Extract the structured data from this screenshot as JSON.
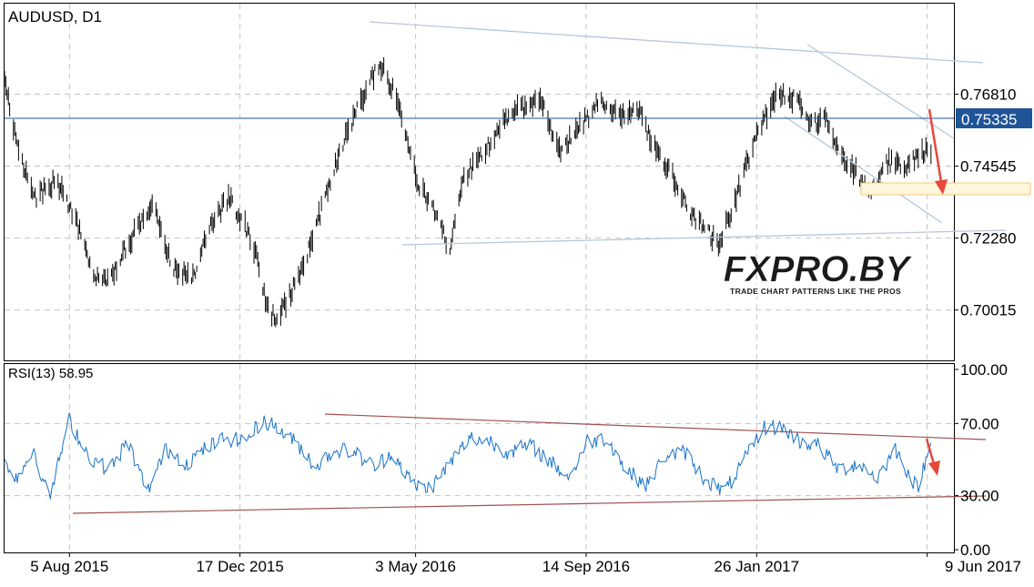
{
  "chart_data": [
    {
      "type": "line",
      "subtype": "bar-ohlc",
      "title": "AUDUSD, D1",
      "symbol": "AUDUSD",
      "timeframe": "D1",
      "current_price": 0.75335,
      "current_price_label": "0.75335",
      "y_ticks": [
        0.70015,
        0.7228,
        0.74545,
        0.7681
      ],
      "y_tick_labels": [
        "0.70015",
        "0.72280",
        "0.74545",
        "0.76810"
      ],
      "ylim": [
        0.6843,
        0.7966
      ],
      "grid": true,
      "x_tick_labels": [
        "5 Aug 2015",
        "17 Dec 2015",
        "3 May 2016",
        "14 Sep 2016",
        "26 Jan 2017",
        "9 Jun 2017"
      ],
      "x_tick_dates": [
        "2015-08-05",
        "2015-12-17",
        "2016-05-03",
        "2016-09-14",
        "2017-01-26",
        "2017-06-09"
      ],
      "x_range": [
        "2015-06-15",
        "2017-06-30"
      ],
      "series": [
        {
          "x": [
            "2015-06-15",
            "2015-06-25",
            "2015-07-08",
            "2015-07-25",
            "2015-08-10",
            "2015-08-25",
            "2015-09-05",
            "2015-09-20",
            "2015-10-10",
            "2015-10-25",
            "2015-11-10",
            "2015-11-25",
            "2015-12-08",
            "2015-12-20",
            "2015-12-30",
            "2016-01-08",
            "2016-01-15",
            "2016-01-25",
            "2016-02-05",
            "2016-02-20",
            "2016-03-05",
            "2016-03-20",
            "2016-04-05",
            "2016-04-20",
            "2016-05-05",
            "2016-05-15",
            "2016-05-30",
            "2016-06-10",
            "2016-06-25",
            "2016-07-10",
            "2016-07-25",
            "2016-08-10",
            "2016-08-25",
            "2016-09-10",
            "2016-09-25",
            "2016-10-10",
            "2016-10-25",
            "2016-11-05",
            "2016-11-20",
            "2016-12-05",
            "2016-12-20",
            "2016-12-28",
            "2017-01-10",
            "2017-01-25",
            "2017-02-10",
            "2017-02-25",
            "2017-03-10",
            "2017-03-20",
            "2017-04-01",
            "2017-04-15",
            "2017-04-25",
            "2017-05-08",
            "2017-05-20",
            "2017-06-05",
            "2017-06-12"
          ],
          "values": [
            0.773,
            0.752,
            0.735,
            0.741,
            0.729,
            0.71,
            0.709,
            0.721,
            0.735,
            0.713,
            0.71,
            0.728,
            0.735,
            0.728,
            0.717,
            0.7,
            0.697,
            0.705,
            0.714,
            0.733,
            0.751,
            0.765,
            0.778,
            0.765,
            0.74,
            0.733,
            0.719,
            0.742,
            0.749,
            0.76,
            0.764,
            0.765,
            0.75,
            0.758,
            0.766,
            0.761,
            0.763,
            0.753,
            0.743,
            0.731,
            0.724,
            0.721,
            0.736,
            0.754,
            0.768,
            0.767,
            0.758,
            0.761,
            0.749,
            0.743,
            0.736,
            0.747,
            0.745,
            0.75,
            0.751
          ]
        }
      ]
    },
    {
      "type": "line",
      "title": "RSI(13) 58.95",
      "indicator": "RSI(13)",
      "indicator_value": "58.95",
      "y_ticks": [
        0,
        30,
        70,
        100
      ],
      "y_tick_labels": [
        "0.00",
        "30.00",
        "70.00",
        "100.00"
      ],
      "ylim": [
        -1,
        103
      ],
      "grid": true,
      "x_range": [
        "2015-06-15",
        "2017-06-30"
      ],
      "series": [
        {
          "x": [
            "2015-06-15",
            "2015-06-25",
            "2015-07-08",
            "2015-07-20",
            "2015-08-05",
            "2015-08-20",
            "2015-09-05",
            "2015-09-20",
            "2015-10-05",
            "2015-10-20",
            "2015-11-05",
            "2015-11-20",
            "2015-12-05",
            "2015-12-20",
            "2016-01-05",
            "2016-01-18",
            "2016-02-01",
            "2016-02-15",
            "2016-03-01",
            "2016-03-15",
            "2016-04-01",
            "2016-04-15",
            "2016-05-01",
            "2016-05-15",
            "2016-06-01",
            "2016-06-15",
            "2016-07-01",
            "2016-07-15",
            "2016-08-01",
            "2016-08-15",
            "2016-09-01",
            "2016-09-15",
            "2016-10-01",
            "2016-10-15",
            "2016-11-01",
            "2016-11-15",
            "2016-12-01",
            "2016-12-15",
            "2017-01-01",
            "2017-01-15",
            "2017-02-01",
            "2017-02-15",
            "2017-03-01",
            "2017-03-15",
            "2017-04-01",
            "2017-04-15",
            "2017-05-01",
            "2017-05-15",
            "2017-06-01",
            "2017-06-12"
          ],
          "values": [
            48,
            40,
            56,
            28,
            72,
            52,
            44,
            60,
            32,
            56,
            48,
            56,
            62,
            60,
            72,
            66,
            58,
            46,
            56,
            54,
            46,
            54,
            36,
            34,
            50,
            62,
            60,
            54,
            58,
            50,
            40,
            60,
            62,
            44,
            36,
            52,
            54,
            40,
            32,
            48,
            68,
            68,
            60,
            58,
            44,
            48,
            40,
            56,
            34,
            58
          ]
        }
      ]
    }
  ],
  "watermark": {
    "brand": "FXPRO.BY",
    "tagline": "TRADE CHART PATTERNS LIKE THE PROS"
  },
  "colors": {
    "price_bars": "#000000",
    "current_price_line": "#1f5597",
    "price_label_bg": "#1f5597",
    "channel_lines": "#b4c8dc",
    "rsi_line": "#1a73c8",
    "rsi_trendlines": "#a0524f",
    "arrow": "#e6483a",
    "target_box": "#f5c878",
    "grid": "#c4c4c4"
  }
}
